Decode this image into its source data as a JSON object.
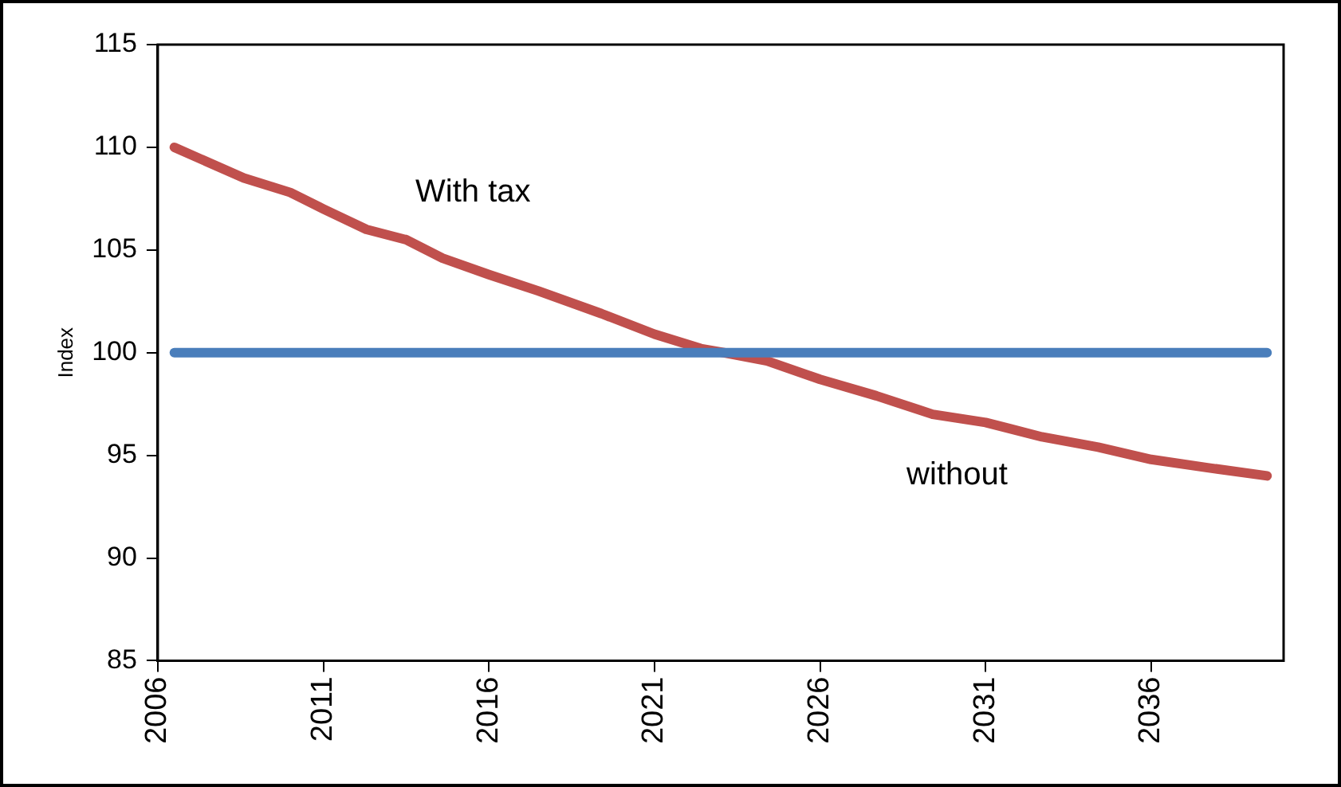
{
  "chart_data": {
    "type": "line",
    "ylabel": "Index",
    "xlim": [
      2006,
      2040
    ],
    "xticks": [
      2006,
      2011,
      2016,
      2021,
      2026,
      2031,
      2036
    ],
    "ylim": [
      85,
      115
    ],
    "yticks": [
      85,
      90,
      95,
      100,
      105,
      110,
      115
    ],
    "grid": false,
    "legend": false,
    "marker": "none",
    "line_style": "solid",
    "series": [
      {
        "color": "#4a7ebb",
        "x": [
          2006.5,
          2039.5
        ],
        "values": [
          100,
          100
        ]
      },
      {
        "color": "#c0504d",
        "x": [
          2006.5,
          2008.6,
          2010,
          2011,
          2012.3,
          2013.5,
          2014.6,
          2016,
          2017.5,
          2019.4,
          2021,
          2022.4,
          2023.1,
          2024.4,
          2026,
          2027.7,
          2029.4,
          2031,
          2032.7,
          2034.4,
          2036,
          2037.7,
          2039.5
        ],
        "values": [
          110.0,
          108.5,
          107.8,
          107.0,
          106.0,
          105.5,
          104.6,
          103.8,
          103.0,
          101.9,
          100.9,
          100.2,
          100.0,
          99.6,
          98.7,
          97.9,
          97.0,
          96.6,
          95.9,
          95.4,
          94.8,
          94.4,
          94.0
        ]
      }
    ],
    "annotations": [
      "With tax",
      "without"
    ]
  }
}
